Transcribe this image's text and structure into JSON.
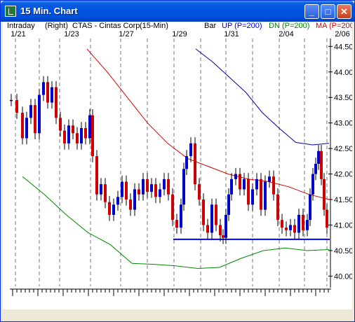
{
  "window": {
    "title": "15 Min. Chart",
    "buttons": {
      "minimize": "_",
      "maximize": "□",
      "close": "✕"
    }
  },
  "header": {
    "interval": "Intraday",
    "axis_side": "(Right)",
    "symbol_desc": "CTAS - Cintas Corp",
    "period": "(15-Min)",
    "style": "Bar",
    "up_label": "UP (P=200)",
    "dn_label": "DN (P=200)",
    "ma_label": "MA (P=200"
  },
  "colors": {
    "up_bar": "#0000cc",
    "down_bar": "#cc0000",
    "up_band": "#0000aa",
    "dn_band": "#008800",
    "ma": "#dd0000",
    "support": "#0000ff",
    "price_line": "#888888"
  },
  "chart_data": {
    "type": "line",
    "title": "",
    "x_labels": [
      "1/21",
      "1/23",
      "1/27",
      "1/29",
      "1/31",
      "2/04",
      "2/06"
    ],
    "y_ticks": [
      "44.50",
      "44.00",
      "43.50",
      "43.00",
      "42.50",
      "42.00",
      "41.50",
      "41.00",
      "40.50",
      "40.00"
    ],
    "ylim": [
      39.8,
      44.6
    ],
    "support_level": 40.72,
    "series": [
      {
        "name": "UP (P=200)",
        "values": [
          44.45,
          44.2,
          43.9,
          43.6,
          43.2,
          42.9,
          42.62,
          42.57,
          42.6
        ]
      },
      {
        "name": "DN (P=200)",
        "values": [
          41.95,
          41.6,
          41.2,
          40.85,
          40.62,
          40.25,
          40.23,
          40.2,
          40.15,
          40.17,
          40.35,
          40.5,
          40.55,
          40.5,
          40.52
        ]
      },
      {
        "name": "MA (P=200",
        "values": [
          44.45,
          44.0,
          43.5,
          43.0,
          42.6,
          42.3,
          42.15,
          42.0,
          41.9,
          41.85,
          41.75,
          41.6,
          41.5
        ]
      }
    ],
    "grid": true
  }
}
